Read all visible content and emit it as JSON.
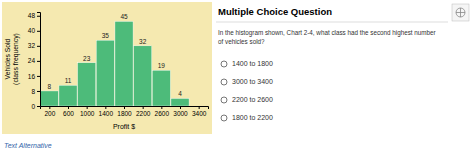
{
  "chart_data": {
    "type": "bar",
    "x": [
      200,
      600,
      1000,
      1400,
      1800,
      2200,
      2600,
      3000
    ],
    "values": [
      8,
      11,
      23,
      35,
      45,
      32,
      19,
      4
    ],
    "color": "#4dbb7a",
    "xlabel": "Profit $",
    "ylabel": "Vehicles Sold\n(class frequency)",
    "xlim": [
      0,
      3600
    ],
    "ylim": [
      0,
      50
    ],
    "xticks": [
      200,
      600,
      1000,
      1400,
      1800,
      2200,
      2600,
      3000,
      3400
    ],
    "yticks": [
      0,
      8,
      16,
      24,
      32,
      40,
      48
    ],
    "grid": false,
    "data_labels": true,
    "annotations": [
      "Multiple Choice Question",
      "In the histogram shown, Chart 2-4, what class had the second highest number\nof vehicles sold?",
      "1400 to 1800",
      "3000 to 3400",
      "2200 to 2600",
      "1800 to 2200",
      "Text Alternative"
    ]
  }
}
